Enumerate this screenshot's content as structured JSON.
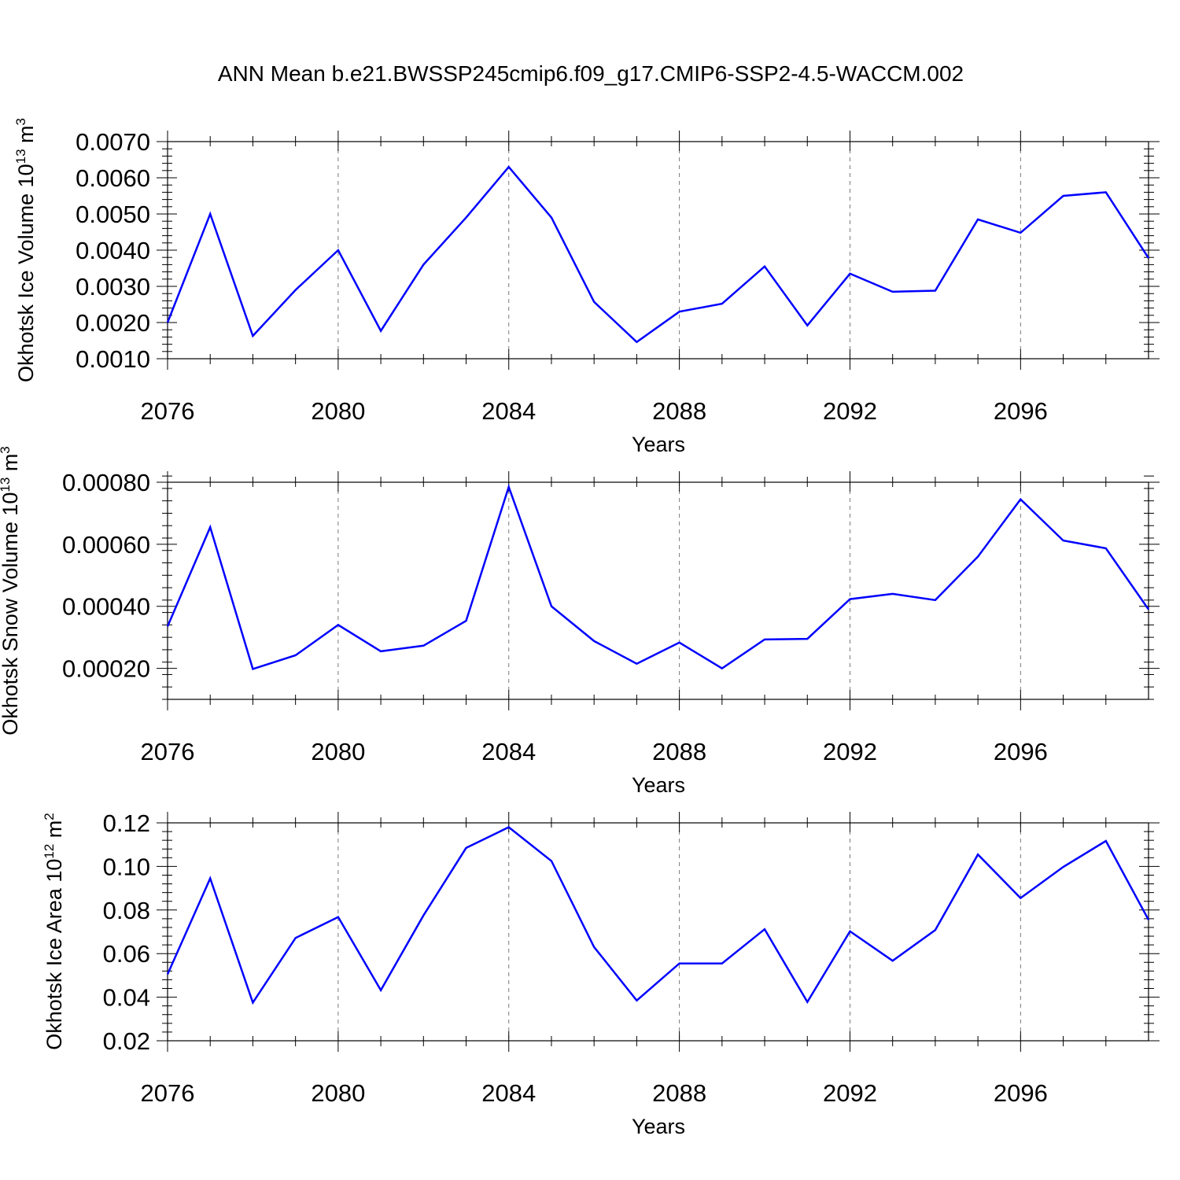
{
  "title": "ANN Mean b.e21.BWSSP245cmip6.f09_g17.CMIP6-SSP2-4.5-WACCM.002",
  "colors": {
    "series": "#0000ff",
    "frame": "#000000",
    "grid": "#7a7a7a"
  },
  "chart_data": [
    {
      "type": "line",
      "title": "ANN Mean b.e21.BWSSP245cmip6.f09_g17.CMIP6-SSP2-4.5-WACCM.002",
      "xlabel": "Years",
      "ylabel": {
        "text": "Okhotsk Ice Volume 10",
        "exp1": "13",
        "mid": " m",
        "exp2": "3"
      },
      "x": [
        2076,
        2077,
        2078,
        2079,
        2080,
        2081,
        2082,
        2083,
        2084,
        2085,
        2086,
        2087,
        2088,
        2089,
        2090,
        2091,
        2092,
        2093,
        2094,
        2095,
        2096,
        2097,
        2098,
        2099
      ],
      "series": [
        {
          "name": "Okhotsk Ice Volume",
          "values": [
            0.002,
            0.005,
            0.00163,
            0.0029,
            0.004,
            0.00177,
            0.0036,
            0.0049,
            0.0063,
            0.0049,
            0.00257,
            0.00146,
            0.0023,
            0.00252,
            0.00355,
            0.00192,
            0.00335,
            0.00285,
            0.00288,
            0.00485,
            0.00448,
            0.0055,
            0.0056,
            0.00378
          ]
        }
      ],
      "xlim": [
        2076,
        2099
      ],
      "ylim": [
        0.001,
        0.007
      ],
      "yticks": [
        0.001,
        0.002,
        0.003,
        0.004,
        0.005,
        0.006,
        0.007
      ],
      "ytick_labels": [
        "0.0010",
        "0.0020",
        "0.0030",
        "0.0040",
        "0.0050",
        "0.0060",
        "0.0070"
      ],
      "yminor_step": 0.0002,
      "xticks": [
        2076,
        2080,
        2084,
        2088,
        2092,
        2096
      ],
      "xtick_labels": [
        "2076",
        "2080",
        "2084",
        "2088",
        "2092",
        "2096"
      ],
      "grid": "x-dashed"
    },
    {
      "type": "line",
      "xlabel": "Years",
      "ylabel": {
        "text": "Okhotsk Snow Volume 10",
        "exp1": "13",
        "mid": " m",
        "exp2": "3"
      },
      "x": [
        2076,
        2077,
        2078,
        2079,
        2080,
        2081,
        2082,
        2083,
        2084,
        2085,
        2086,
        2087,
        2088,
        2089,
        2090,
        2091,
        2092,
        2093,
        2094,
        2095,
        2096,
        2097,
        2098,
        2099
      ],
      "series": [
        {
          "name": "Okhotsk Snow Volume",
          "values": [
            0.000335,
            0.000655,
            0.000198,
            0.000242,
            0.00034,
            0.000255,
            0.000273,
            0.000353,
            0.000785,
            0.0004,
            0.000288,
            0.000215,
            0.000283,
            0.0002,
            0.000293,
            0.000295,
            0.000423,
            0.00044,
            0.00042,
            0.00056,
            0.000745,
            0.000612,
            0.000587,
            0.00039
          ]
        }
      ],
      "xlim": [
        2076,
        2099
      ],
      "ylim": [
        0.0001,
        0.0008
      ],
      "yticks": [
        0.0002,
        0.0004,
        0.0006,
        0.0008
      ],
      "ytick_labels": [
        "0.00020",
        "0.00040",
        "0.00060",
        "0.00080"
      ],
      "yminor_step": 4e-05,
      "xticks": [
        2076,
        2080,
        2084,
        2088,
        2092,
        2096
      ],
      "xtick_labels": [
        "2076",
        "2080",
        "2084",
        "2088",
        "2092",
        "2096"
      ],
      "grid": "x-dashed"
    },
    {
      "type": "line",
      "xlabel": "Years",
      "ylabel": {
        "text": "Okhotsk Ice Area 10",
        "exp1": "12",
        "mid": " m",
        "exp2": "2"
      },
      "x": [
        2076,
        2077,
        2078,
        2079,
        2080,
        2081,
        2082,
        2083,
        2084,
        2085,
        2086,
        2087,
        2088,
        2089,
        2090,
        2091,
        2092,
        2093,
        2094,
        2095,
        2096,
        2097,
        2098,
        2099
      ],
      "series": [
        {
          "name": "Okhotsk Ice Area",
          "values": [
            0.0505,
            0.0945,
            0.0375,
            0.0672,
            0.0768,
            0.0432,
            0.0775,
            0.1085,
            0.118,
            0.1025,
            0.063,
            0.0385,
            0.0555,
            0.0555,
            0.0712,
            0.0378,
            0.0702,
            0.0567,
            0.0708,
            0.1055,
            0.0855,
            0.0998,
            0.1117,
            0.0755
          ]
        }
      ],
      "xlim": [
        2076,
        2099
      ],
      "ylim": [
        0.02,
        0.12
      ],
      "yticks": [
        0.02,
        0.04,
        0.06,
        0.08,
        0.1,
        0.12
      ],
      "ytick_labels": [
        "0.02",
        "0.04",
        "0.06",
        "0.08",
        "0.10",
        "0.12"
      ],
      "yminor_step": 0.004,
      "xticks": [
        2076,
        2080,
        2084,
        2088,
        2092,
        2096
      ],
      "xtick_labels": [
        "2076",
        "2080",
        "2084",
        "2088",
        "2092",
        "2096"
      ],
      "grid": "x-dashed"
    }
  ]
}
